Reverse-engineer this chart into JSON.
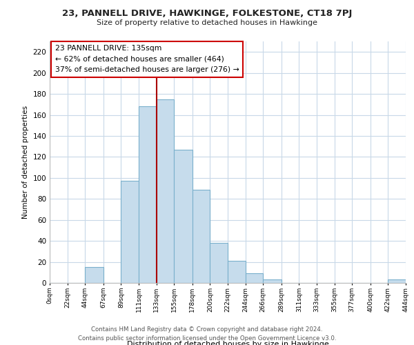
{
  "title": "23, PANNELL DRIVE, HAWKINGE, FOLKESTONE, CT18 7PJ",
  "subtitle": "Size of property relative to detached houses in Hawkinge",
  "xlabel": "Distribution of detached houses by size in Hawkinge",
  "ylabel": "Number of detached properties",
  "bin_edges": [
    0,
    22,
    44,
    67,
    89,
    111,
    133,
    155,
    178,
    200,
    222,
    244,
    266,
    289,
    311,
    333,
    355,
    377,
    400,
    422,
    444
  ],
  "bar_heights": [
    0,
    0,
    15,
    0,
    97,
    168,
    175,
    127,
    89,
    38,
    21,
    9,
    3,
    0,
    0,
    0,
    0,
    0,
    0,
    3
  ],
  "bar_color": "#c6dcec",
  "bar_edge_color": "#7ab0cc",
  "vline_x": 133,
  "vline_color": "#aa0000",
  "ylim": [
    0,
    230
  ],
  "yticks": [
    0,
    20,
    40,
    60,
    80,
    100,
    120,
    140,
    160,
    180,
    200,
    220
  ],
  "xtick_labels": [
    "0sqm",
    "22sqm",
    "44sqm",
    "67sqm",
    "89sqm",
    "111sqm",
    "133sqm",
    "155sqm",
    "178sqm",
    "200sqm",
    "222sqm",
    "244sqm",
    "266sqm",
    "289sqm",
    "311sqm",
    "333sqm",
    "355sqm",
    "377sqm",
    "400sqm",
    "422sqm",
    "444sqm"
  ],
  "annotation_title": "23 PANNELL DRIVE: 135sqm",
  "annotation_line1": "← 62% of detached houses are smaller (464)",
  "annotation_line2": "37% of semi-detached houses are larger (276) →",
  "footer_line1": "Contains HM Land Registry data © Crown copyright and database right 2024.",
  "footer_line2": "Contains public sector information licensed under the Open Government Licence v3.0.",
  "background_color": "#ffffff",
  "grid_color": "#c8d8e8"
}
